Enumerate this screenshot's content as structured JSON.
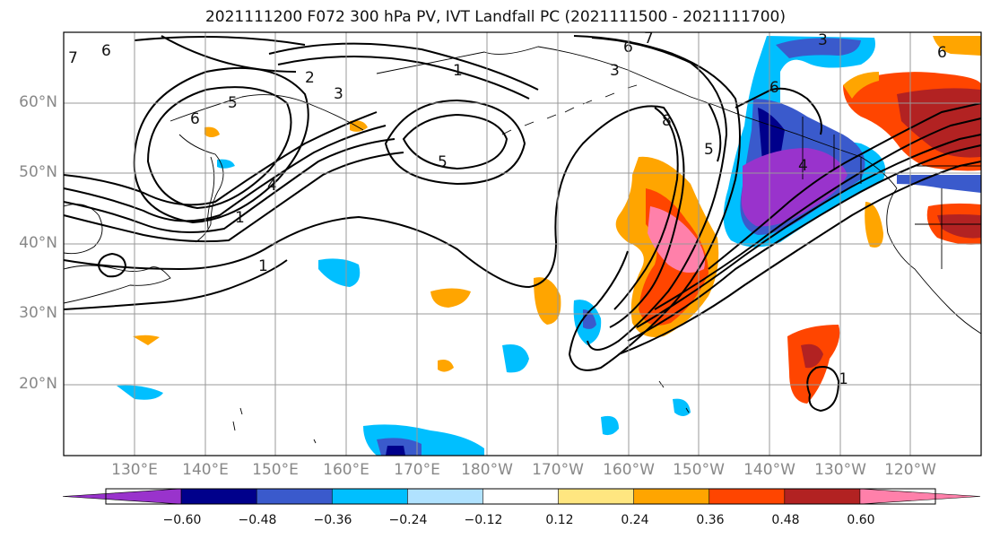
{
  "title": "2021111200 F072 300 hPa PV, IVT Landfall PC (2021111500 - 2021111700)",
  "lat_labels": [
    "60°N",
    "50°N",
    "40°N",
    "30°N",
    "20°N"
  ],
  "lon_labels": [
    "130°E",
    "140°E",
    "150°E",
    "160°E",
    "170°E",
    "180°W",
    "170°W",
    "160°W",
    "150°W",
    "140°W",
    "130°W",
    "120°W"
  ],
  "contour_labels": [
    "6",
    "7",
    "2",
    "1",
    "5",
    "3",
    "6",
    "7",
    "6",
    "3",
    "5",
    "4",
    "6",
    "1",
    "3",
    "8",
    "6",
    "5",
    "4",
    "1",
    "1"
  ],
  "colorbar": {
    "ticks": [
      "−0.60",
      "−0.48",
      "−0.36",
      "−0.24",
      "−0.12",
      "0.12",
      "0.24",
      "0.36",
      "0.48",
      "0.60"
    ],
    "colors": [
      "#9933cc",
      "#00008b",
      "#3a5acc",
      "#00bfff",
      "#b0e2ff",
      "#ffffff",
      "#ffe680",
      "#ffa500",
      "#ff4500",
      "#b22222",
      "#ff80aa"
    ]
  }
}
